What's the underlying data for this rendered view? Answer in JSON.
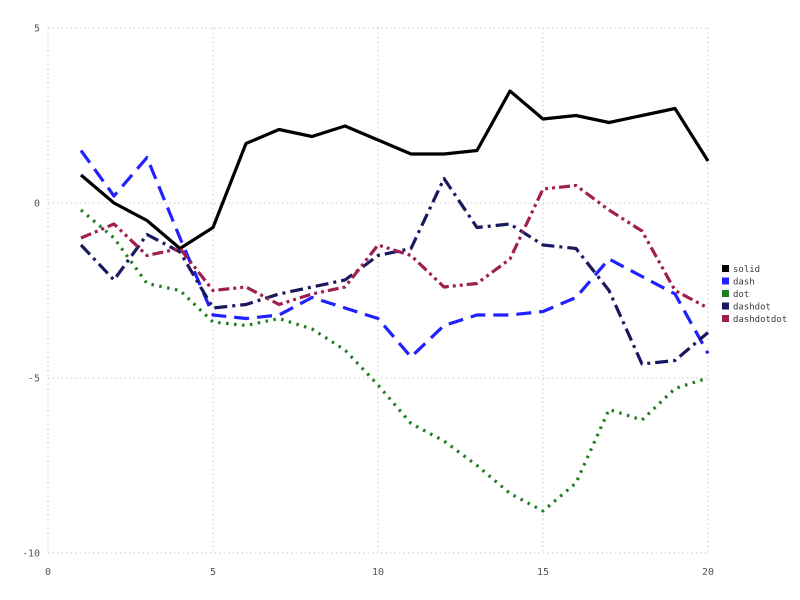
{
  "chart_data": {
    "type": "line",
    "title": "",
    "xlabel": "",
    "ylabel": "",
    "xlim": [
      0,
      20
    ],
    "ylim": [
      -10,
      5
    ],
    "x_ticks": [
      0,
      5,
      10,
      15,
      20
    ],
    "y_ticks": [
      -10,
      -5,
      0,
      5
    ],
    "grid": true,
    "grid_color": "#c8c8c8",
    "tick_label_color": "#545454",
    "legend_position": "right",
    "x": [
      1,
      2,
      3,
      4,
      5,
      6,
      7,
      8,
      9,
      10,
      11,
      12,
      13,
      14,
      15,
      16,
      17,
      18,
      19,
      20
    ],
    "series": [
      {
        "name": "solid",
        "color": "#000000",
        "line_style": "solid",
        "values": [
          0.8,
          0.0,
          -0.5,
          -1.3,
          -0.7,
          1.7,
          2.1,
          1.9,
          2.2,
          1.8,
          1.4,
          1.4,
          1.5,
          3.2,
          2.4,
          2.5,
          2.3,
          2.5,
          2.7,
          1.2
        ]
      },
      {
        "name": "dash",
        "color": "#2121ff",
        "line_style": "dash",
        "values": [
          1.5,
          0.2,
          1.3,
          -1.0,
          -3.2,
          -3.3,
          -3.2,
          -2.7,
          -3.0,
          -3.3,
          -4.4,
          -3.5,
          -3.2,
          -3.2,
          -3.1,
          -2.7,
          -1.6,
          -2.1,
          -2.6,
          -4.3
        ]
      },
      {
        "name": "dot",
        "color": "#1e7d1e",
        "line_style": "dot",
        "values": [
          -0.2,
          -1.0,
          -2.3,
          -2.5,
          -3.4,
          -3.5,
          -3.3,
          -3.6,
          -4.2,
          -5.2,
          -6.3,
          -6.8,
          -7.5,
          -8.3,
          -8.8,
          -8.0,
          -5.9,
          -6.2,
          -5.3,
          -5.0
        ]
      },
      {
        "name": "dashdot",
        "color": "#191960",
        "line_style": "dashdot",
        "values": [
          -1.2,
          -2.2,
          -0.9,
          -1.4,
          -3.0,
          -2.9,
          -2.6,
          -2.4,
          -2.2,
          -1.5,
          -1.3,
          0.7,
          -0.7,
          -0.6,
          -1.2,
          -1.3,
          -2.5,
          -4.6,
          -4.5,
          -3.7
        ]
      },
      {
        "name": "dashdotdot",
        "color": "#a01e50",
        "line_style": "dashdotdot",
        "values": [
          -1.0,
          -0.6,
          -1.5,
          -1.3,
          -2.5,
          -2.4,
          -2.9,
          -2.6,
          -2.4,
          -1.2,
          -1.5,
          -2.4,
          -2.3,
          -1.6,
          0.4,
          0.5,
          -0.2,
          -0.8,
          -2.5,
          -3.0
        ]
      }
    ]
  }
}
